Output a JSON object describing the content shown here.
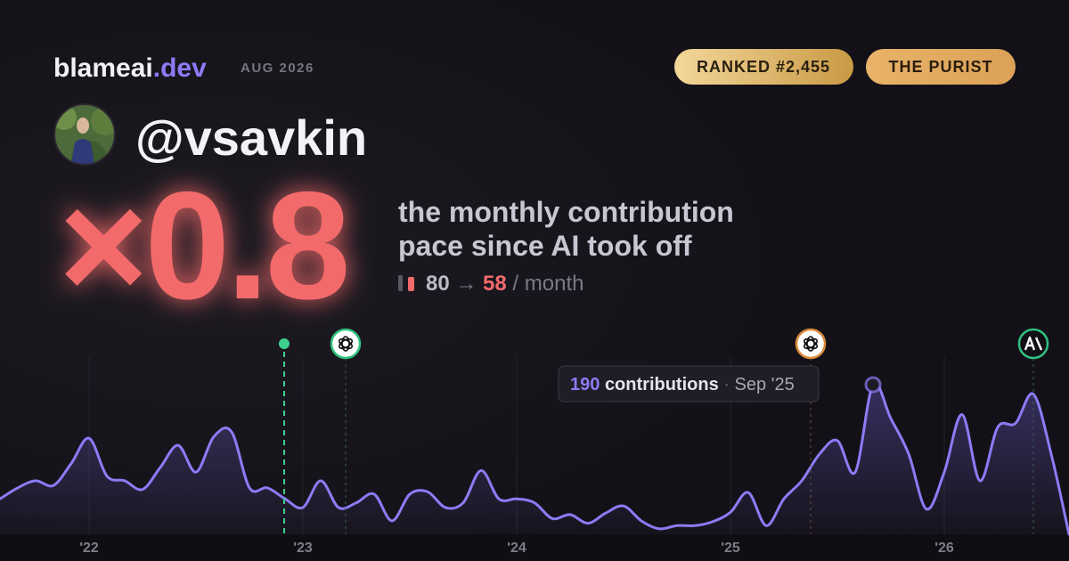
{
  "header": {
    "brand": "blameai",
    "domain": ".dev",
    "date": "AUG 2026"
  },
  "badges": [
    "RANKED #2,455",
    "THE PURIST"
  ],
  "profile": {
    "handle": "@vsavkin"
  },
  "stat": {
    "multiplier": "×0.8",
    "description": [
      "the monthly contribution",
      "pace since AI took off"
    ],
    "before": 80,
    "arrow": "→",
    "after": 58,
    "unit": "/ month"
  },
  "chart_data": {
    "type": "line",
    "categories": [
      null,
      null,
      null,
      null,
      null,
      "'22",
      null,
      null,
      null,
      null,
      null,
      null,
      null,
      null,
      null,
      null,
      null,
      "'23",
      null,
      null,
      null,
      null,
      null,
      null,
      null,
      null,
      null,
      null,
      null,
      "'24",
      null,
      null,
      null,
      null,
      null,
      null,
      null,
      null,
      null,
      null,
      null,
      "'25",
      null,
      null,
      null,
      null,
      null,
      null,
      null,
      null,
      null,
      null,
      null,
      "'26",
      null,
      null,
      null,
      null,
      null,
      null,
      null
    ],
    "values": [
      45,
      59,
      68,
      62,
      90,
      122,
      74,
      68,
      57,
      85,
      113,
      79,
      124,
      130,
      59,
      59,
      45,
      34,
      68,
      34,
      40,
      51,
      17,
      51,
      54,
      34,
      40,
      81,
      45,
      45,
      40,
      20,
      25,
      14,
      27,
      36,
      17,
      7,
      11,
      11,
      16,
      28,
      53,
      11,
      45,
      68,
      102,
      119,
      79,
      190,
      147,
      102,
      32,
      79,
      152,
      68,
      136,
      141,
      178,
      102,
      0
    ],
    "color": "#8b7cf6",
    "ylim": [
      0,
      190
    ],
    "tooltip": {
      "label": "contributions",
      "separator": "·",
      "date": "Sep '25"
    }
  }
}
